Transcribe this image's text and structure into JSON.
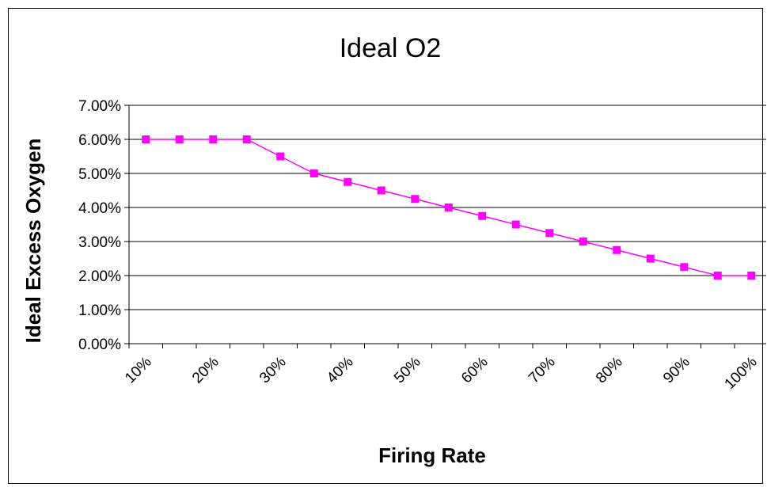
{
  "chart_data": {
    "type": "line",
    "title": "Ideal O2",
    "xlabel": "Firing Rate",
    "ylabel": "Ideal Excess Oxygen",
    "x_tick_labels": [
      "10%",
      "20%",
      "30%",
      "40%",
      "50%",
      "60%",
      "70%",
      "80%",
      "90%",
      "100%"
    ],
    "y_tick_labels": [
      "0.00%",
      "1.00%",
      "2.00%",
      "3.00%",
      "4.00%",
      "5.00%",
      "6.00%",
      "7.00%"
    ],
    "ylim": [
      0,
      0.07
    ],
    "grid": "horizontal",
    "legend": "none",
    "series": [
      {
        "color": "#ff00ff",
        "marker": "square",
        "x": [
          0.1,
          0.15,
          0.2,
          0.25,
          0.3,
          0.35,
          0.4,
          0.45,
          0.5,
          0.55,
          0.6,
          0.65,
          0.7,
          0.75,
          0.8,
          0.85,
          0.9,
          0.95,
          1.0
        ],
        "y": [
          0.06,
          0.06,
          0.06,
          0.06,
          0.055,
          0.05,
          0.0475,
          0.045,
          0.0425,
          0.04,
          0.0375,
          0.035,
          0.0325,
          0.03,
          0.0275,
          0.025,
          0.0225,
          0.02,
          0.02
        ]
      }
    ]
  }
}
